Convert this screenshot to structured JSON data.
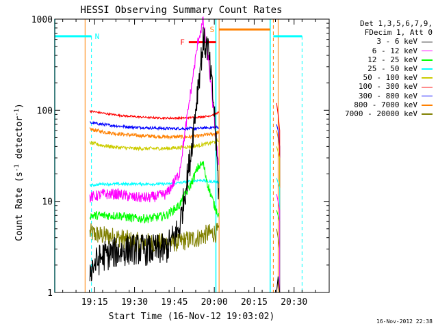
{
  "chart_data": {
    "type": "line",
    "title": "HESSI Observing Summary Count Rates",
    "xlabel": "Start Time (16-Nov-12 19:03:02)",
    "ylabel_main": "Count Rate (s",
    "ylabel_sup1": "-1",
    "ylabel_mid": " detector",
    "ylabel_sup2": "-1",
    "ylabel_end": ")",
    "ylog": true,
    "ylim": [
      1,
      1000
    ],
    "xlim_minutes": [
      19.0,
      20.72
    ],
    "yticks": [
      {
        "v": 1,
        "label": "1"
      },
      {
        "v": 10,
        "label": "10"
      },
      {
        "v": 100,
        "label": "100"
      },
      {
        "v": 1000,
        "label": "1000"
      }
    ],
    "xticks": [
      {
        "t": 19.25,
        "label": "19:15"
      },
      {
        "t": 19.5,
        "label": "19:30"
      },
      {
        "t": 19.75,
        "label": "19:45"
      },
      {
        "t": 20.0,
        "label": "20:00"
      },
      {
        "t": 20.25,
        "label": "20:15"
      },
      {
        "t": 20.5,
        "label": "20:30"
      }
    ],
    "legend_header": [
      "Det 1,3,5,6,7,9,",
      "FDecim 1, Att 0"
    ],
    "series": [
      {
        "name": "3 - 6 keV",
        "color": "#000000",
        "key": "s3_6"
      },
      {
        "name": "6 - 12 keV",
        "color": "#ff00ff",
        "key": "s6_12"
      },
      {
        "name": "12 - 25 keV",
        "color": "#00ff00",
        "key": "s12_25"
      },
      {
        "name": "25 - 50 keV",
        "color": "#00ffff",
        "key": "s25_50"
      },
      {
        "name": "50 - 100 keV",
        "color": "#cccc00",
        "key": "s50_100"
      },
      {
        "name": "100 - 300 keV",
        "color": "#ff0000",
        "key": "s100_300"
      },
      {
        "name": "300 - 800 keV",
        "color": "#0000ff",
        "key": "s300_800"
      },
      {
        "name": "800 - 7000 keV",
        "color": "#ff8000",
        "key": "s800_7000"
      },
      {
        "name": "7000 - 20000 keV",
        "color": "#808000",
        "key": "s7000_20000"
      }
    ],
    "data": {
      "x": [
        19.22,
        19.3,
        19.4,
        19.5,
        19.6,
        19.7,
        19.78,
        19.85,
        19.9,
        19.93,
        19.96,
        20.0,
        20.03
      ],
      "s3_6": [
        1.8,
        2.5,
        2.8,
        3.0,
        2.9,
        3.0,
        5.0,
        30,
        200,
        560,
        480,
        100,
        10
      ],
      "s6_12": [
        11,
        12,
        12,
        11,
        11,
        12,
        20,
        150,
        600,
        950,
        400,
        80,
        20
      ],
      "s12_25": [
        7,
        7,
        7,
        6.5,
        6.5,
        7,
        9,
        15,
        24,
        26,
        15,
        9,
        7
      ],
      "s25_50": [
        15,
        15.5,
        15.5,
        15.5,
        15.5,
        15.5,
        16,
        16.5,
        17,
        17,
        16.5,
        16.5,
        16
      ],
      "s50_100": [
        44,
        41,
        39,
        38,
        38,
        38,
        39,
        40,
        41,
        42,
        43,
        45,
        47
      ],
      "s100_300": [
        98,
        93,
        88,
        85,
        83,
        82,
        82,
        83,
        84,
        85,
        86,
        90,
        95
      ],
      "s300_800": [
        73,
        70,
        67,
        65,
        64,
        63,
        63,
        63,
        63,
        64,
        64,
        65,
        65
      ],
      "s800_7000": [
        62,
        58,
        55,
        53,
        52,
        51,
        51,
        51,
        52,
        53,
        54,
        55,
        58
      ],
      "s7000_20000": [
        4.5,
        4.2,
        4.0,
        3.6,
        3.5,
        3.5,
        3.6,
        3.8,
        4.0,
        4.2,
        4.4,
        4.5,
        4.6
      ]
    },
    "post_gap_x": [
      20.39,
      20.4,
      20.41
    ],
    "post_gap": {
      "s3_6": [
        1.0,
        1.5,
        1.0
      ],
      "s100_300": [
        120,
        90,
        60
      ],
      "s300_800": [
        70,
        60,
        40
      ],
      "s800_7000": [
        60,
        50,
        40
      ],
      "s6_12": [
        12,
        10,
        8
      ],
      "s12_25": [
        8,
        7,
        6
      ],
      "s25_50": [
        18,
        16,
        14
      ],
      "s50_100": [
        40,
        35,
        30
      ],
      "s7000_20000": [
        5,
        4,
        3
      ]
    },
    "annotations": {
      "N_label": "N",
      "S_label": "S",
      "F_label": "F",
      "night_segments": [
        [
          19.0,
          19.23
        ],
        [
          20.37,
          20.55
        ]
      ],
      "saa_segment": [
        20.03,
        20.35
      ],
      "flare_segment": [
        19.84,
        20.01
      ],
      "night_level": 650,
      "saa_level": 770,
      "flare_level": 560,
      "night_color": "#00ffff",
      "saa_color": "#ff8000",
      "flare_color": "#ff0000",
      "vlines_cyan_solid": [
        19.0,
        20.01,
        20.35
      ],
      "vlines_cyan_dashed": [
        19.23,
        20.55
      ],
      "vlines_orange_solid": [
        19.19,
        20.03,
        20.4
      ],
      "vlines_orange_dashed": [
        20.37
      ]
    },
    "legend_placement": "right"
  },
  "footer_stamp": "16-Nov-2012 22:38"
}
